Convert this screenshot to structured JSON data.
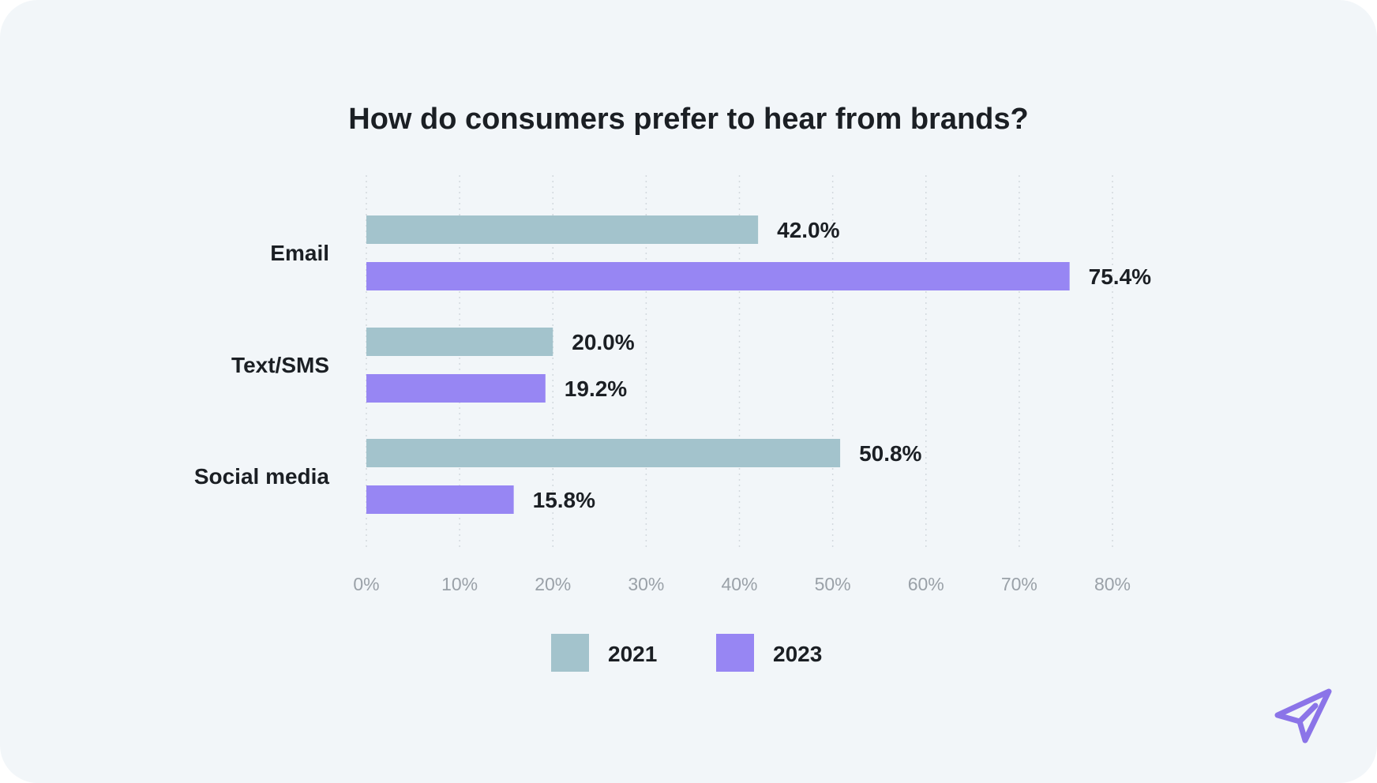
{
  "chart_data": {
    "type": "bar",
    "orientation": "horizontal",
    "title": "How do consumers prefer to hear from brands?",
    "categories": [
      "Email",
      "Text/SMS",
      "Social media"
    ],
    "series": [
      {
        "name": "2021",
        "values": [
          42.0,
          20.0,
          50.8
        ],
        "labels": [
          "42.0%",
          "20.0%",
          "50.8%"
        ],
        "color": "#a3c3cc"
      },
      {
        "name": "2023",
        "values": [
          75.4,
          19.2,
          15.8
        ],
        "labels": [
          "75.4%",
          "19.2%",
          "15.8%"
        ],
        "color": "#9786f3"
      }
    ],
    "xlim": [
      0,
      80
    ],
    "xticks": [
      0,
      10,
      20,
      30,
      40,
      50,
      60,
      70,
      80
    ],
    "xtick_labels": [
      "0%",
      "10%",
      "20%",
      "30%",
      "40%",
      "50%",
      "60%",
      "70%",
      "80%"
    ],
    "xlabel": "",
    "ylabel": "",
    "grid": "vertical dotted",
    "legend": "bottom-center"
  },
  "logo": {
    "name": "paper-plane-icon",
    "color": "#8b74e8"
  }
}
